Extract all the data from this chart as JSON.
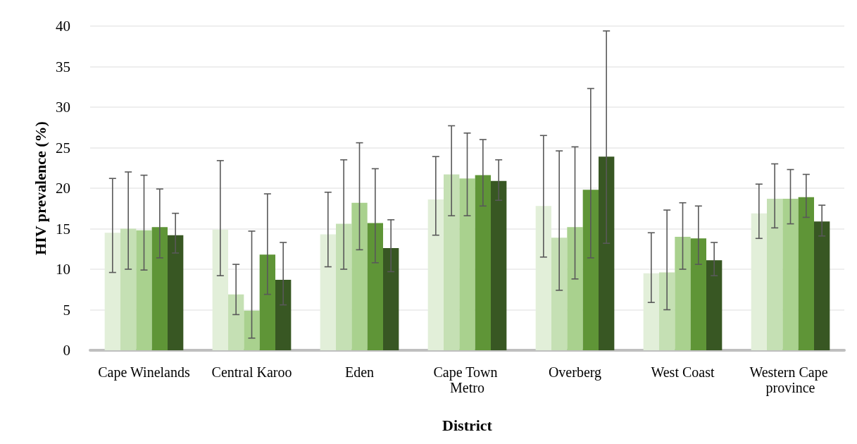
{
  "chart_data": {
    "type": "bar",
    "xlabel": "District",
    "ylabel": "HIV prevalence (%)",
    "categories": [
      "Cape Winelands",
      "Central Karoo",
      "Eden",
      "Cape Town Metro",
      "Overberg",
      "West Coast",
      "Western Cape province"
    ],
    "series": [
      {
        "color": "#e2efd9",
        "values": [
          14.5,
          14.9,
          14.3,
          18.6,
          17.8,
          9.5,
          16.9
        ],
        "errors": [
          [
            9.6,
            21.2
          ],
          [
            9.2,
            23.4
          ],
          [
            10.3,
            19.5
          ],
          [
            14.2,
            23.9
          ],
          [
            11.5,
            26.5
          ],
          [
            5.9,
            14.5
          ],
          [
            13.8,
            20.5
          ]
        ]
      },
      {
        "color": "#c5e0b4",
        "values": [
          15.0,
          6.9,
          15.6,
          21.7,
          13.9,
          9.6,
          18.7
        ],
        "errors": [
          [
            10.0,
            22.0
          ],
          [
            4.4,
            10.6
          ],
          [
            10.0,
            23.5
          ],
          [
            16.6,
            27.7
          ],
          [
            7.4,
            24.6
          ],
          [
            5.0,
            17.3
          ],
          [
            15.1,
            23.0
          ]
        ]
      },
      {
        "color": "#a9d18e",
        "values": [
          14.8,
          4.9,
          18.2,
          21.2,
          15.2,
          14.0,
          18.7
        ],
        "errors": [
          [
            9.9,
            21.6
          ],
          [
            1.5,
            14.7
          ],
          [
            12.4,
            25.6
          ],
          [
            16.6,
            26.8
          ],
          [
            8.8,
            25.1
          ],
          [
            10.0,
            18.2
          ],
          [
            15.6,
            22.3
          ]
        ]
      },
      {
        "color": "#5f9537",
        "values": [
          15.2,
          11.8,
          15.7,
          21.6,
          19.8,
          13.8,
          18.9
        ],
        "errors": [
          [
            11.4,
            19.9
          ],
          [
            6.9,
            19.3
          ],
          [
            10.8,
            22.4
          ],
          [
            17.8,
            26.0
          ],
          [
            11.4,
            32.3
          ],
          [
            10.6,
            17.8
          ],
          [
            16.4,
            21.7
          ]
        ]
      },
      {
        "color": "#385723",
        "values": [
          14.2,
          8.7,
          12.6,
          20.9,
          23.9,
          11.1,
          15.9
        ],
        "errors": [
          [
            12.0,
            16.9
          ],
          [
            5.6,
            13.3
          ],
          [
            9.7,
            16.1
          ],
          [
            18.5,
            23.5
          ],
          [
            13.2,
            39.4
          ],
          [
            9.2,
            13.3
          ],
          [
            14.1,
            17.9
          ]
        ]
      }
    ],
    "ylim": [
      0,
      40
    ],
    "yticks": [
      0,
      5,
      10,
      15,
      20,
      25,
      30,
      35,
      40
    ],
    "grid": "y"
  }
}
